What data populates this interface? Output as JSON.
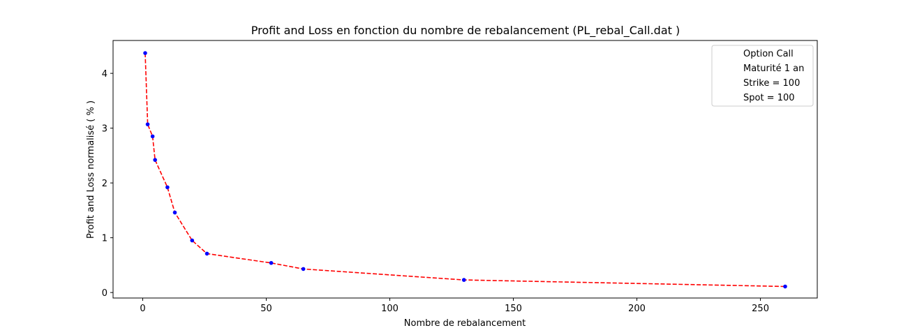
{
  "chart_data": {
    "type": "line",
    "title": "Profit and Loss en fonction du nombre de rebalancement   (PL_rebal_Call.dat )",
    "xlabel": "Nombre de rebalancement",
    "ylabel": "Profit and Loss normalisé ( % )",
    "xlim": [
      -12,
      273
    ],
    "ylim": [
      -0.1,
      4.6
    ],
    "xticks": [
      0,
      50,
      100,
      150,
      200,
      250
    ],
    "yticks": [
      0,
      1,
      2,
      3,
      4
    ],
    "grid": false,
    "legend_position": "top-right",
    "legend": [
      "Option Call",
      "Maturité 1 an",
      "Strike = 100",
      "Spot = 100"
    ],
    "series": [
      {
        "x": [
          1,
          2,
          4,
          5,
          10,
          13,
          20,
          26,
          52,
          65,
          130,
          260
        ],
        "y": [
          4.37,
          3.07,
          2.85,
          2.42,
          1.92,
          1.46,
          0.95,
          0.71,
          0.54,
          0.43,
          0.23,
          0.11
        ],
        "line_color": "#ff0000",
        "line_style": "dashed",
        "marker_color": "#0000ff"
      }
    ]
  }
}
